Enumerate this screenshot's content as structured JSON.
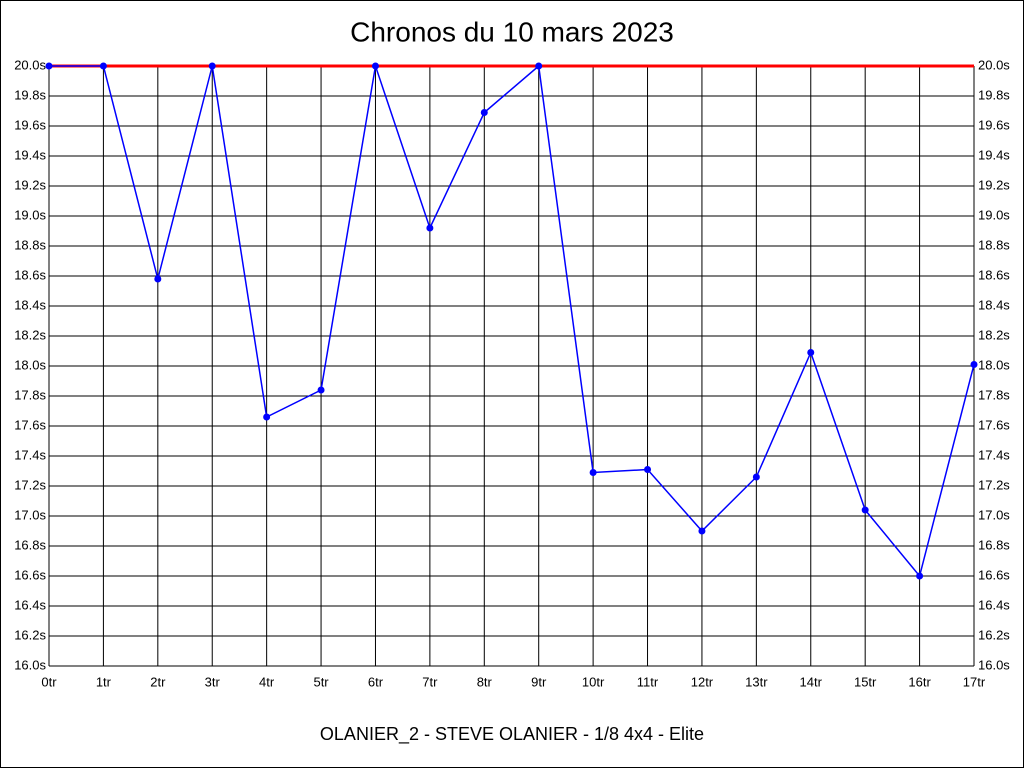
{
  "chart_data": {
    "type": "line",
    "title": "Chronos du 10 mars 2023",
    "subtitle": "OLANIER_2 - STEVE OLANIER - 1/8 4x4 - Elite",
    "categories": [
      "0tr",
      "1tr",
      "2tr",
      "3tr",
      "4tr",
      "5tr",
      "6tr",
      "7tr",
      "8tr",
      "9tr",
      "10tr",
      "11tr",
      "12tr",
      "13tr",
      "14tr",
      "15tr",
      "16tr",
      "17tr"
    ],
    "series": [
      {
        "color": "#0000ff",
        "values": [
          20.0,
          20.0,
          18.58,
          20.0,
          17.66,
          17.84,
          20.0,
          18.92,
          19.69,
          20.0,
          17.29,
          17.31,
          16.9,
          17.26,
          18.09,
          17.04,
          16.6,
          18.01
        ]
      }
    ],
    "reference_line": {
      "value": 20.0,
      "color": "#ff0000"
    },
    "ylim": [
      16.0,
      20.0
    ],
    "yticks": [
      {
        "value": 16.0,
        "label": "16.0s"
      },
      {
        "value": 16.2,
        "label": "16.2s"
      },
      {
        "value": 16.4,
        "label": "16.4s"
      },
      {
        "value": 16.6,
        "label": "16.6s"
      },
      {
        "value": 16.8,
        "label": "16.8s"
      },
      {
        "value": 17.0,
        "label": "17.0s"
      },
      {
        "value": 17.2,
        "label": "17.2s"
      },
      {
        "value": 17.4,
        "label": "17.4s"
      },
      {
        "value": 17.6,
        "label": "17.6s"
      },
      {
        "value": 17.8,
        "label": "17.8s"
      },
      {
        "value": 18.0,
        "label": "18.0s"
      },
      {
        "value": 18.2,
        "label": "18.2s"
      },
      {
        "value": 18.4,
        "label": "18.4s"
      },
      {
        "value": 18.6,
        "label": "18.6s"
      },
      {
        "value": 18.8,
        "label": "18.8s"
      },
      {
        "value": 19.0,
        "label": "19.0s"
      },
      {
        "value": 19.2,
        "label": "19.2s"
      },
      {
        "value": 19.4,
        "label": "19.4s"
      },
      {
        "value": 19.6,
        "label": "19.6s"
      },
      {
        "value": 19.8,
        "label": "19.8s"
      },
      {
        "value": 20.0,
        "label": "20.0s"
      }
    ],
    "grid": true
  }
}
